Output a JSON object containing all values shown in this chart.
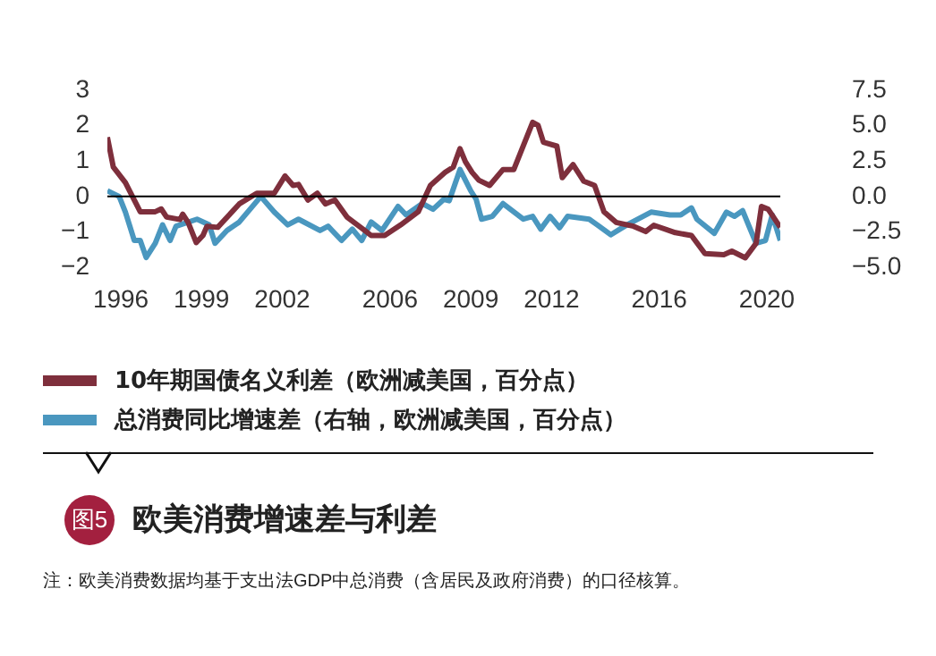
{
  "chart_data": {
    "type": "line",
    "title": "欧美消费增速差与利差",
    "annotations": [
      "图5",
      "注：欧美消费数据均基于支出法GDP中总消费（含居民及政府消费）的口径核算。"
    ],
    "xlim": [
      1995.5,
      2020.5
    ],
    "xticks": [
      1996,
      1999,
      2002,
      2006,
      2009,
      2012,
      2016,
      2020
    ],
    "ylim": [
      -2,
      3
    ],
    "yticks": [
      {
        "value": -2,
        "label": "−2"
      },
      {
        "value": -1,
        "label": "−1"
      },
      0,
      1,
      2,
      3
    ],
    "y2lim": [
      -5,
      7.5
    ],
    "y2ticks": [
      {
        "value": -5,
        "label": "−5.0"
      },
      {
        "value": -2.5,
        "label": "−2.5"
      },
      {
        "value": 0,
        "label": "0.0"
      },
      {
        "value": 2.5,
        "label": "2.5"
      },
      {
        "value": 5,
        "label": "5.0"
      },
      {
        "value": 7.5,
        "label": "7.5"
      }
    ],
    "ref_lines": [
      {
        "axis": "y",
        "value": 0,
        "color": "#000000"
      }
    ],
    "grid": false,
    "legend": "bottom",
    "marker": "none",
    "line_style": "solid",
    "series": [
      {
        "name": "10年期国债名义利差（欧洲减美国，百分点）",
        "color": "#7e2f3c",
        "x": [
          1995.5,
          1995.72,
          1996.17,
          1996.72,
          1997.28,
          1997.5,
          1997.7,
          1998.2,
          1998.3,
          1998.5,
          1998.8,
          1999.05,
          1999.2,
          1999.6,
          2000.4,
          2001.05,
          2001.7,
          2002.1,
          2002.4,
          2002.6,
          2002.95,
          2003.3,
          2003.6,
          2003.95,
          2004.4,
          2005.05,
          2005.3,
          2005.8,
          2006.4,
          2007.05,
          2007.5,
          2008.05,
          2008.35,
          2008.6,
          2008.8,
          2009.05,
          2009.3,
          2009.7,
          2010.2,
          2010.6,
          2011.3,
          2011.5,
          2011.7,
          2012.2,
          2012.4,
          2012.8,
          2013.2,
          2013.6,
          2013.95,
          2014.4,
          2015.05,
          2015.5,
          2015.8,
          2016.6,
          2017.2,
          2017.7,
          2018.4,
          2018.7,
          2019.2,
          2019.6,
          2019.8,
          2020.05,
          2020.5
        ],
        "values": [
          1.67,
          0.83,
          0.39,
          -0.43,
          -0.43,
          -0.35,
          -0.58,
          -0.65,
          -0.5,
          -0.73,
          -1.3,
          -1.1,
          -0.84,
          -0.87,
          -0.21,
          0.09,
          0.09,
          0.58,
          0.31,
          0.34,
          -0.1,
          0.09,
          -0.21,
          -0.1,
          -0.58,
          -0.95,
          -1.1,
          -1.1,
          -0.8,
          -0.43,
          0.31,
          0.68,
          0.83,
          1.35,
          0.98,
          0.68,
          0.46,
          0.31,
          0.76,
          0.76,
          2.09,
          2.01,
          1.53,
          1.42,
          0.53,
          0.9,
          0.43,
          0.31,
          -0.43,
          -0.73,
          -0.84,
          -0.99,
          -0.81,
          -1.02,
          -1.1,
          -1.61,
          -1.64,
          -1.54,
          -1.73,
          -1.32,
          -0.28,
          -0.36,
          -0.87
        ]
      },
      {
        "name": "总消费同比增速差（右轴，欧洲减美国，百分点）",
        "color": "#4a97bf",
        "axis": "y2",
        "x": [
          1995.5,
          1995.94,
          1996.17,
          1996.5,
          1996.72,
          1996.94,
          1997.28,
          1997.55,
          1997.83,
          1998.05,
          1998.83,
          1999.28,
          1999.5,
          1999.94,
          2000.4,
          2001.2,
          2001.7,
          2002.2,
          2002.6,
          2003.4,
          2003.7,
          2004.2,
          2004.6,
          2004.95,
          2005.3,
          2005.7,
          2006.3,
          2006.6,
          2007.2,
          2007.6,
          2008.0,
          2008.2,
          2008.6,
          2009.0,
          2009.2,
          2009.4,
          2009.8,
          2010.2,
          2010.95,
          2011.3,
          2011.6,
          2011.95,
          2012.3,
          2012.6,
          2013.4,
          2013.7,
          2014.2,
          2014.8,
          2015.7,
          2016.4,
          2016.8,
          2017.2,
          2017.4,
          2018.05,
          2018.5,
          2018.8,
          2019.1,
          2019.6,
          2019.95,
          2020.2,
          2020.5
        ],
        "values": [
          0.4,
          0,
          -1.1,
          -3.1,
          -3.1,
          -4.3,
          -3.3,
          -2,
          -3.1,
          -2.1,
          -1.6,
          -2,
          -3.3,
          -2.4,
          -1.8,
          0,
          -1.1,
          -2,
          -1.6,
          -2.4,
          -2.1,
          -3.1,
          -2.3,
          -3.1,
          -1.8,
          -2.4,
          -0.7,
          -1.3,
          -0.5,
          -0.9,
          -0.2,
          -0.3,
          1.9,
          0.4,
          -0.2,
          -1.6,
          -1.4,
          -0.5,
          -1.6,
          -1.4,
          -2.3,
          -1.4,
          -2.2,
          -1.4,
          -1.6,
          -2,
          -2.7,
          -2,
          -1.1,
          -1.3,
          -1.3,
          -0.8,
          -1.6,
          -2.6,
          -1.1,
          -1.4,
          -1,
          -3.3,
          -3.1,
          -1.3,
          -3.1
        ]
      }
    ]
  }
}
